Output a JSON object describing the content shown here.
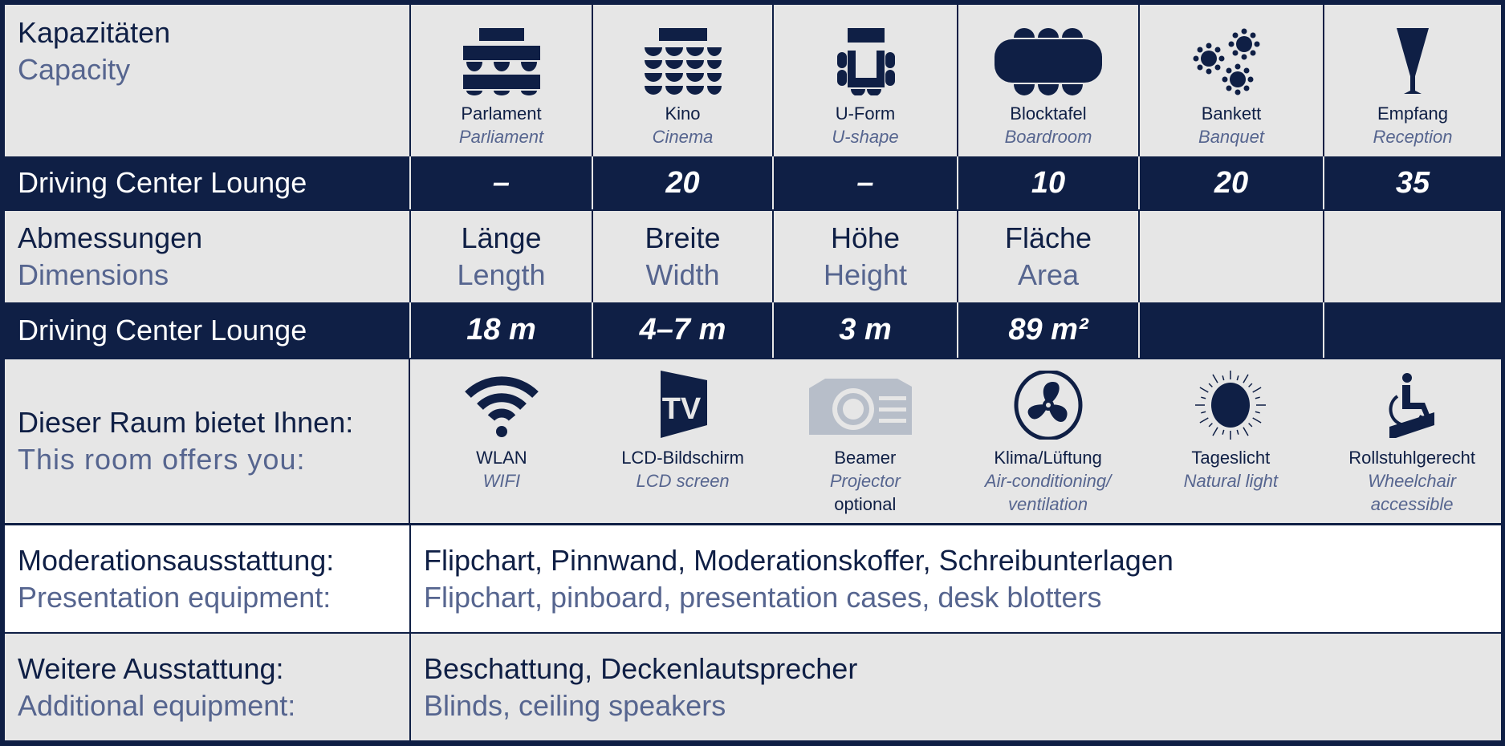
{
  "capacity": {
    "title_de": "Kapazitäten",
    "title_en": "Capacity",
    "layouts": [
      {
        "de": "Parlament",
        "en": "Parliament",
        "icon": "parliament-icon"
      },
      {
        "de": "Kino",
        "en": "Cinema",
        "icon": "cinema-icon"
      },
      {
        "de": "U-Form",
        "en": "U-shape",
        "icon": "u-shape-icon"
      },
      {
        "de": "Blocktafel",
        "en": "Boardroom",
        "icon": "boardroom-icon"
      },
      {
        "de": "Bankett",
        "en": "Banquet",
        "icon": "banquet-icon"
      },
      {
        "de": "Empfang",
        "en": "Reception",
        "icon": "reception-glass-icon"
      }
    ],
    "room": "Driving Center Lounge",
    "values": [
      "–",
      "20",
      "–",
      "10",
      "20",
      "35"
    ]
  },
  "dimensions": {
    "title_de": "Abmessungen",
    "title_en": "Dimensions",
    "headers": [
      {
        "de": "Länge",
        "en": "Length"
      },
      {
        "de": "Breite",
        "en": "Width"
      },
      {
        "de": "Höhe",
        "en": "Height"
      },
      {
        "de": "Fläche",
        "en": "Area"
      }
    ],
    "room": "Driving Center Lounge",
    "values": [
      "18 m",
      "4–7 m",
      "3 m",
      "89 m²"
    ]
  },
  "features": {
    "title_de": "Dieser Raum bietet Ihnen:",
    "title_en": "This room offers you:",
    "items": [
      {
        "de": "WLAN",
        "en": "WIFI",
        "icon": "wifi-icon"
      },
      {
        "de": "LCD-Bildschirm",
        "en": "LCD screen",
        "icon": "tv-icon"
      },
      {
        "de": "Beamer",
        "en": "Projector",
        "note": "optional",
        "icon": "projector-icon"
      },
      {
        "de": "Klima/Lüftung",
        "en": "Air-conditioning/",
        "en2": "ventilation",
        "icon": "fan-icon"
      },
      {
        "de": "Tageslicht",
        "en": "Natural light",
        "icon": "sun-icon"
      },
      {
        "de": "Rollstuhlgerecht",
        "en": "Wheelchair",
        "en2": "accessible",
        "icon": "wheelchair-icon"
      }
    ]
  },
  "presentation": {
    "label_de": "Moderationsausstattung:",
    "label_en": "Presentation equipment:",
    "value_de": "Flipchart, Pinnwand, Moderationskoffer, Schreibunterlagen",
    "value_en": "Flipchart, pinboard, presentation cases, desk blotters"
  },
  "additional": {
    "label_de": "Weitere Ausstattung:",
    "label_en": "Additional equipment:",
    "value_de": "Beschattung, Deckenlautsprecher",
    "value_en": "Blinds, ceiling speakers"
  },
  "colors": {
    "navy": "#0f1f45",
    "muted": "#56658f",
    "light": "#e6e6e6",
    "disabled": "#b7bec9"
  }
}
